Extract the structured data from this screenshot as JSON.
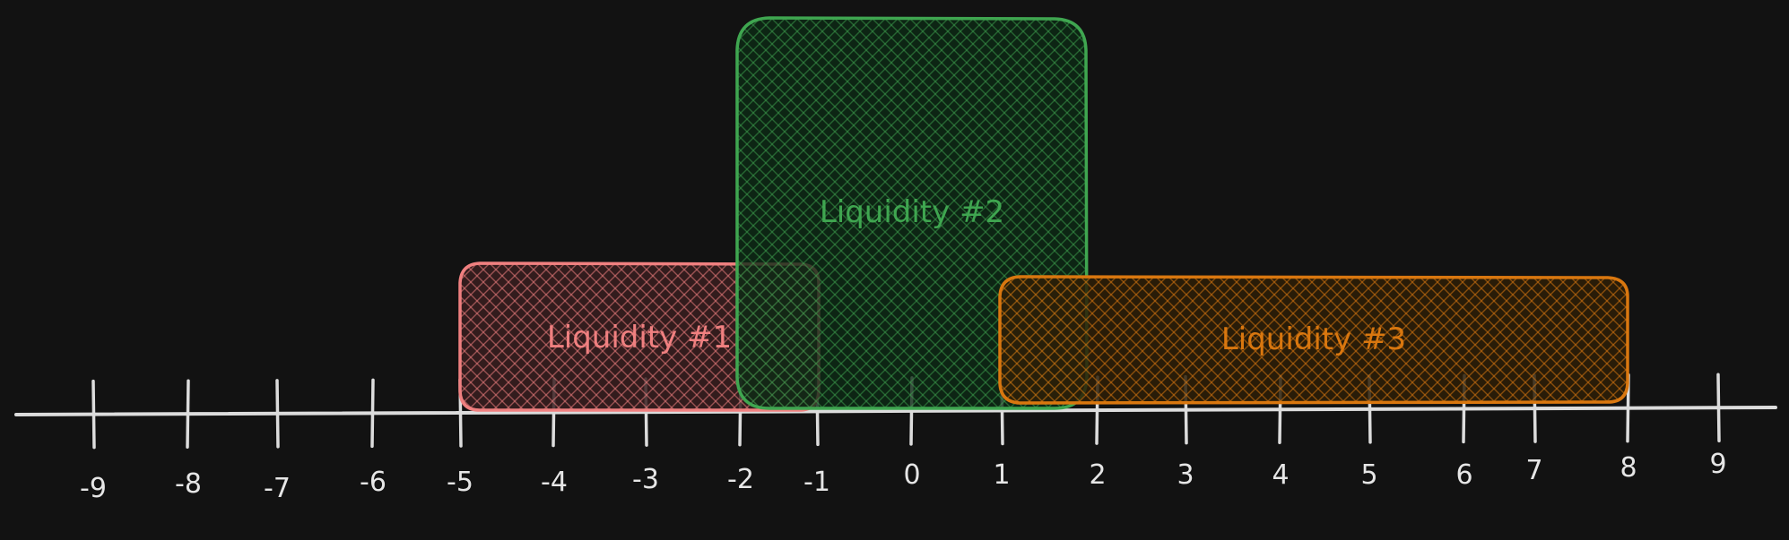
{
  "colors": {
    "background": "#121212",
    "axis": "#dcdcdc",
    "tick_label": "#e6e6e6"
  },
  "axis": {
    "ticks": [
      "-9",
      "-8",
      "-7",
      "-6",
      "-5",
      "-4",
      "-3",
      "-2",
      "-1",
      "0",
      "1",
      "2",
      "3",
      "4",
      "5",
      "6",
      "7",
      "8",
      "9"
    ]
  },
  "ranges": [
    {
      "label": "Liquidity #1",
      "from": -5,
      "to": -1,
      "stroke": "#f08080",
      "fill": "#3a1e20"
    },
    {
      "label": "Liquidity #2",
      "from": -2,
      "to": 2,
      "stroke": "#3fa650",
      "fill": "#0d2a15"
    },
    {
      "label": "Liquidity #3",
      "from": 1,
      "to": 8,
      "stroke": "#d9770f",
      "fill": "#2e1e07"
    }
  ]
}
